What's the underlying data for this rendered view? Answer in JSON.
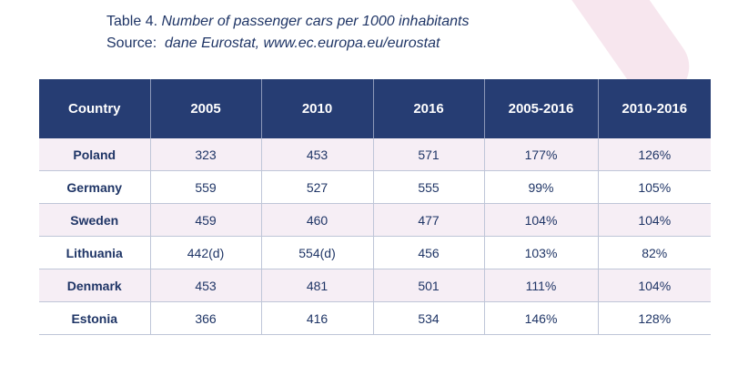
{
  "caption": {
    "table_number": "Table 4.",
    "title": "Number of passenger cars per 1000 inhabitants",
    "source_label": "Source:",
    "source_text": "dane Eurostat, www.ec.europa.eu/eurostat"
  },
  "table": {
    "headers": [
      "Country",
      "2005",
      "2010",
      "2016",
      "2005-2016",
      "2010-2016"
    ],
    "rows": [
      [
        "Poland",
        "323",
        "453",
        "571",
        "177%",
        "126%"
      ],
      [
        "Germany",
        "559",
        "527",
        "555",
        "99%",
        "105%"
      ],
      [
        "Sweden",
        "459",
        "460",
        "477",
        "104%",
        "104%"
      ],
      [
        "Lithuania",
        "442(d)",
        "554(d)",
        "456",
        "103%",
        "82%"
      ],
      [
        "Denmark",
        "453",
        "481",
        "501",
        "111%",
        "104%"
      ],
      [
        "Estonia",
        "366",
        "416",
        "534",
        "146%",
        "128%"
      ]
    ]
  },
  "colors": {
    "header_bg": "#263d73",
    "text": "#1f3566",
    "stripe_row": "#f6eef5"
  }
}
